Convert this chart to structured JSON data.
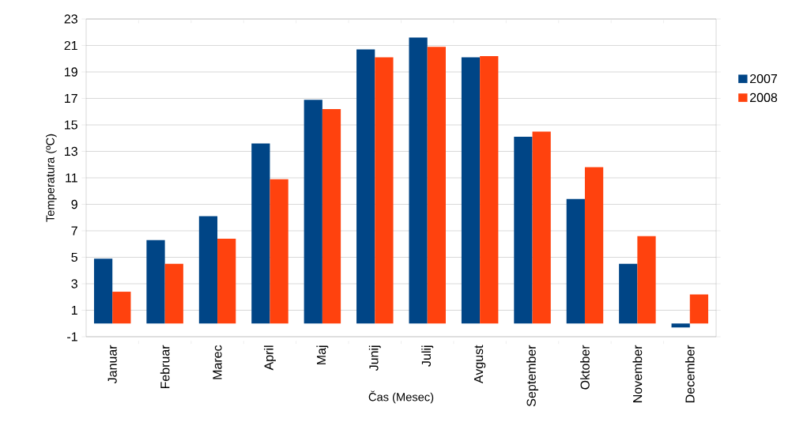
{
  "chart_data": {
    "type": "bar",
    "xlabel": "Čas (Mesec)",
    "ylabel": "Temperatura (ºC)",
    "categories": [
      "Januar",
      "Februar",
      "Marec",
      "April",
      "Maj",
      "Junij",
      "Julij",
      "Avgust",
      "September",
      "Oktober",
      "November",
      "December"
    ],
    "series": [
      {
        "name": "2007",
        "color": "#004586",
        "values": [
          4.9,
          6.3,
          8.1,
          13.6,
          16.9,
          20.7,
          21.6,
          20.1,
          14.1,
          9.4,
          4.5,
          -0.3
        ]
      },
      {
        "name": "2008",
        "color": "#ff420e",
        "values": [
          2.4,
          4.5,
          6.4,
          10.9,
          16.2,
          20.1,
          20.9,
          20.2,
          14.5,
          11.8,
          6.6,
          2.2
        ]
      }
    ],
    "ylim": [
      -1,
      23
    ],
    "yticks": [
      -1,
      1,
      3,
      5,
      7,
      9,
      11,
      13,
      15,
      17,
      19,
      21,
      23
    ],
    "grid": "y",
    "legend": "right"
  }
}
